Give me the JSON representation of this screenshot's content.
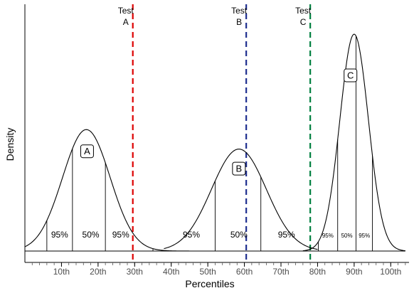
{
  "chart_data": {
    "type": "line",
    "xlabel": "Percentiles",
    "ylabel": "Density",
    "xlim": [
      0,
      105
    ],
    "ylim": [
      0,
      1
    ],
    "x_ticks": [
      10,
      20,
      30,
      40,
      50,
      60,
      70,
      80,
      90,
      100
    ],
    "x_tick_labels": [
      "10th",
      "20th",
      "30th",
      "40th",
      "50th",
      "60th",
      "70th",
      "80th",
      "90th",
      "100th"
    ],
    "series": [
      {
        "name": "A",
        "mean": 16.8,
        "sd": 6.5,
        "peak": 0.56,
        "support": [
          0,
          48
        ],
        "inner_lines": [
          6,
          13,
          22,
          35,
          38.5
        ],
        "band_labels": [
          {
            "x": 9.5,
            "text": "95%"
          },
          {
            "x": 18,
            "text": "50%"
          },
          {
            "x": 26.2,
            "text": "95%"
          }
        ],
        "label_position": [
          17,
          0.46
        ]
      },
      {
        "name": "B",
        "mean": 58.5,
        "sd": 7.5,
        "peak": 0.47,
        "support": [
          38,
          80
        ],
        "inner_lines": [
          52,
          64.5
        ],
        "band_labels": [
          {
            "x": 45.5,
            "text": "95%"
          },
          {
            "x": 58.5,
            "text": "50%"
          },
          {
            "x": 71.5,
            "text": "95%"
          }
        ],
        "label_position": [
          58.5,
          0.38
        ]
      },
      {
        "name": "C",
        "mean": 90,
        "sd": 3.9,
        "peak": 1.0,
        "support": [
          76,
          104
        ],
        "inner_lines": [
          80.2,
          85.5,
          90.5,
          95
        ],
        "band_labels": [
          {
            "x": 82.8,
            "text": "95%"
          },
          {
            "x": 88,
            "text": "50%"
          },
          {
            "x": 92.8,
            "text": "95%"
          }
        ],
        "label_position": [
          89,
          0.81
        ]
      }
    ],
    "reference_lines": [
      {
        "x": 29.5,
        "label_top": "Test",
        "label_bottom": "A",
        "color": "#dd0000"
      },
      {
        "x": 60.5,
        "label_top": "Test",
        "label_bottom": "B",
        "color": "#1f2f8f"
      },
      {
        "x": 78,
        "label_top": "Test",
        "label_bottom": "C",
        "color": "#008040"
      }
    ]
  }
}
